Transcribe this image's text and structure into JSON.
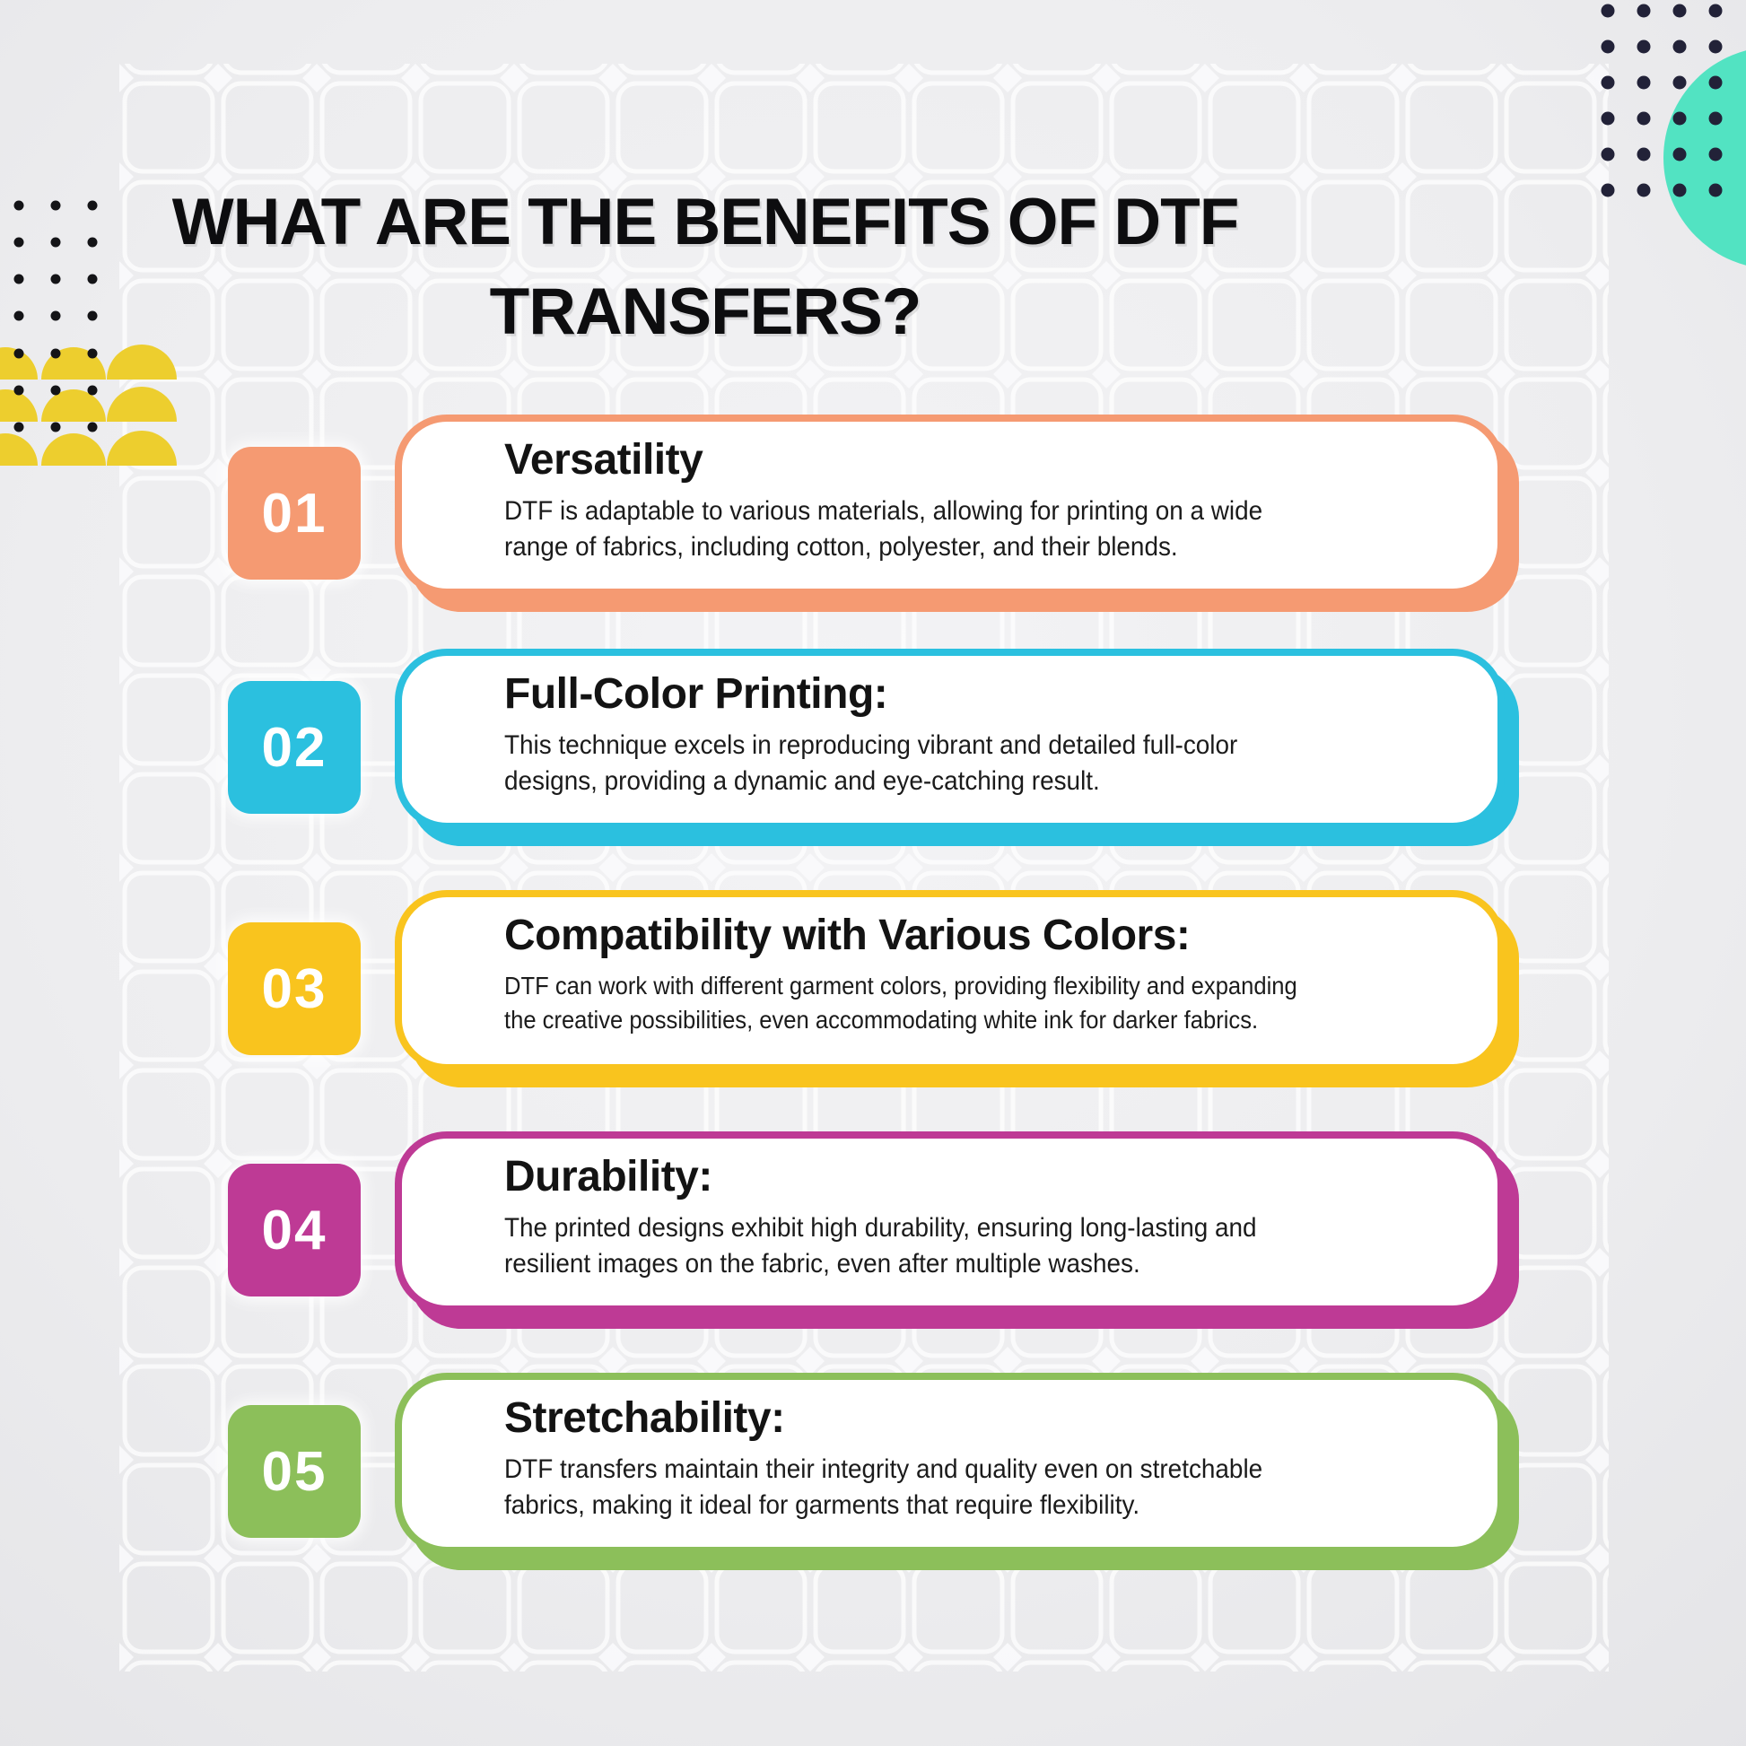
{
  "title": {
    "line1": "WHAT ARE THE BENEFITS OF DTF",
    "line2": "TRANSFERS?"
  },
  "cards": [
    {
      "number": "01",
      "heading": "Versatility",
      "body": "DTF is adaptable to various materials, allowing for printing on a wide\nrange of fabrics, including cotton, polyester, and their blends.",
      "color": "#F59A72"
    },
    {
      "number": "02",
      "heading": "Full-Color Printing:",
      "body": "This technique excels in reproducing vibrant and detailed full-color\ndesigns, providing a dynamic and eye-catching result.",
      "color": "#2BC0DF"
    },
    {
      "number": "03",
      "heading": "Compatibility with Various Colors:",
      "body": "DTF can work with different garment colors, providing flexibility and expanding\nthe creative possibilities, even accommodating white ink for darker fabrics.",
      "color": "#F9C41E"
    },
    {
      "number": "04",
      "heading": "Durability:",
      "body": "The printed designs exhibit high durability, ensuring long-lasting and\nresilient images on the fabric, even after multiple washes.",
      "color": "#BE3A95"
    },
    {
      "number": "05",
      "heading": "Stretchability:",
      "body": "DTF transfers maintain their integrity and quality even on stretchable\nfabrics, making it ideal for garments that require flexibility.",
      "color": "#8CBF5A"
    }
  ],
  "decorations": {
    "teal_circle_color": "#52E3C2",
    "corner_dots_color": "#222238",
    "left_dots_color": "#141417",
    "yellow_arches_color": "#EDCE2E",
    "grid_line_color": "#FFFFFF",
    "background_center": "#F3F3F5",
    "background_edge": "#E3E3E6"
  }
}
